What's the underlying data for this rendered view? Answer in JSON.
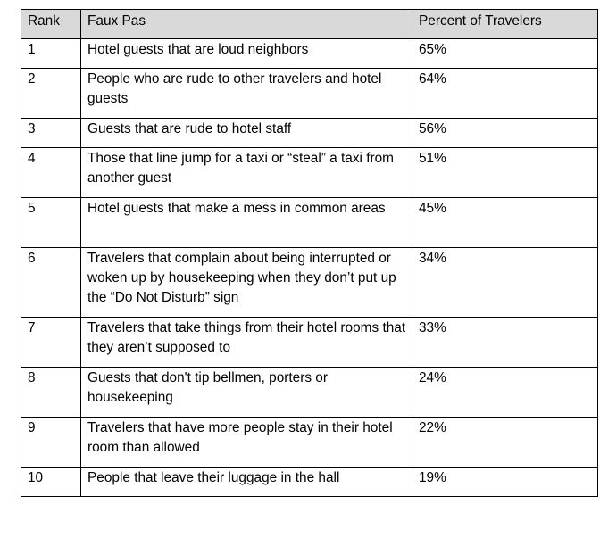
{
  "table": {
    "headers": [
      "Rank",
      "Faux Pas",
      "Percent of Travelers"
    ],
    "rows": [
      {
        "rank": "1",
        "faux_pas": "Hotel guests that are loud neighbors",
        "percent": "65%"
      },
      {
        "rank": "2",
        "faux_pas": "People who are rude to other travelers and hotel guests",
        "percent": "64%"
      },
      {
        "rank": "3",
        "faux_pas": "Guests that are rude to hotel staff",
        "percent": "56%"
      },
      {
        "rank": "4",
        "faux_pas": "Those that line jump for a taxi or “steal” a taxi from another guest",
        "percent": "51%"
      },
      {
        "rank": "5",
        "faux_pas": "Hotel guests that make a mess in common areas",
        "percent": "45%"
      },
      {
        "rank": "6",
        "faux_pas": "Travelers that complain about being interrupted or woken up by housekeeping when they don’t put up the “Do Not Disturb” sign",
        "percent": "34%"
      },
      {
        "rank": "7",
        "faux_pas": "Travelers that take things from their hotel rooms that they aren’t supposed to",
        "percent": "33%"
      },
      {
        "rank": "8",
        "faux_pas": "Guests that don't tip bellmen, porters or housekeeping",
        "percent": "24%"
      },
      {
        "rank": "9",
        "faux_pas": "Travelers that have more people stay in their hotel room than allowed",
        "percent": "22%"
      },
      {
        "rank": "10",
        "faux_pas": "People that leave their luggage in the hall",
        "percent": "19%"
      }
    ]
  }
}
